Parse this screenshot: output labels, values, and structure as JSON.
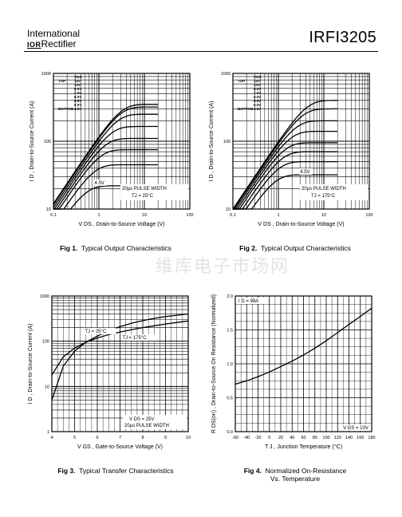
{
  "header": {
    "brand_line1": "International",
    "brand_ior": "IOR",
    "brand_line2": "Rectifier",
    "part_number": "IRFI3205"
  },
  "watermark": "维库电子市场网",
  "captions": {
    "fig1": {
      "num": "Fig 1.",
      "text": "Typical Output Characteristics"
    },
    "fig2": {
      "num": "Fig 2.",
      "text": "Typical Output Characteristics"
    },
    "fig3": {
      "num": "Fig 3.",
      "text": "Typical Transfer Characteristics"
    },
    "fig4": {
      "num": "Fig 4.",
      "text": "Normalized On-Resistance",
      "text2": "Vs. Temperature"
    }
  },
  "chart_data": [
    {
      "id": "fig1",
      "type": "line",
      "xscale": "log",
      "yscale": "log",
      "xlim": [
        0.1,
        100
      ],
      "ylim": [
        10,
        1000
      ],
      "xticks": [
        "0.1",
        "1",
        "10",
        "100"
      ],
      "yticks": [
        "10",
        "100",
        "1000"
      ],
      "xlabel": "V DS , Drain-to-Source Voltage (V)",
      "ylabel": "I D , Drain-to-Source Current (A)",
      "vgs_legend": {
        "header": "VGS",
        "labels": [
          "TOP",
          "BOTTOM"
        ],
        "values": [
          "15V",
          "10V",
          "8.0V",
          "7.0V",
          "6.0V",
          "5.5V",
          "5.0V",
          "4.5V"
        ]
      },
      "annotations": [
        "20µs PULSE WIDTH",
        "TJ = 25°C",
        "4.5V"
      ],
      "series": [
        {
          "vgs": "15V",
          "sat": 350,
          "k": 120
        },
        {
          "vgs": "10V",
          "sat": 320,
          "k": 115
        },
        {
          "vgs": "8.0V",
          "sat": 250,
          "k": 105
        },
        {
          "vgs": "7.0V",
          "sat": 165,
          "k": 95
        },
        {
          "vgs": "6.0V",
          "sat": 110,
          "k": 85
        },
        {
          "vgs": "5.5V",
          "sat": 75,
          "k": 75
        },
        {
          "vgs": "5.0V",
          "sat": 45,
          "k": 60
        },
        {
          "vgs": "4.5V",
          "sat": 22,
          "k": 45
        }
      ]
    },
    {
      "id": "fig2",
      "type": "line",
      "xscale": "log",
      "yscale": "log",
      "xlim": [
        0.1,
        100
      ],
      "ylim": [
        10,
        1000
      ],
      "xticks": [
        "0.1",
        "1",
        "10",
        "100"
      ],
      "yticks": [
        "10",
        "100",
        "1000"
      ],
      "xlabel": "V DS , Drain-to-Source Voltage (V)",
      "ylabel": "I D , Drain-to-Source Current (A)",
      "vgs_legend": {
        "header": "VGS",
        "labels": [
          "TOP",
          "BOTTOM"
        ],
        "values": [
          "15V",
          "10V",
          "8.0V",
          "7.0V",
          "6.0V",
          "5.5V",
          "5.0V",
          "4.5V"
        ]
      },
      "annotations": [
        "20µs PULSE WIDTH",
        "TJ = 175°C",
        "4.5V"
      ],
      "series": [
        {
          "vgs": "15V",
          "sat": 400,
          "k": 100
        },
        {
          "vgs": "10V",
          "sat": 300,
          "k": 95
        },
        {
          "vgs": "8.0V",
          "sat": 200,
          "k": 88
        },
        {
          "vgs": "7.0V",
          "sat": 140,
          "k": 80
        },
        {
          "vgs": "6.0V",
          "sat": 95,
          "k": 72
        },
        {
          "vgs": "5.5V",
          "sat": 70,
          "k": 62
        },
        {
          "vgs": "5.0V",
          "sat": 50,
          "k": 52
        },
        {
          "vgs": "4.5V",
          "sat": 32,
          "k": 40
        }
      ]
    },
    {
      "id": "fig3",
      "type": "line",
      "xscale": "linear",
      "yscale": "log",
      "xlim": [
        4,
        10
      ],
      "ylim": [
        1,
        1000
      ],
      "xticks": [
        "4",
        "5",
        "6",
        "7",
        "8",
        "9",
        "10"
      ],
      "yticks": [
        "1",
        "10",
        "100",
        "1000"
      ],
      "xlabel": "V GS , Gate-to-Source Voltage (V)",
      "ylabel": "I D , Drain-to-Source Current (A)",
      "annotations": [
        "V DS = 25V",
        "20µs PULSE WIDTH"
      ],
      "series": [
        {
          "name": "TJ = 25°C",
          "x": [
            4.0,
            4.5,
            5.0,
            5.5,
            6.0,
            6.5,
            7.0,
            7.5,
            8.0,
            8.5,
            9.0,
            9.5,
            10.0
          ],
          "y": [
            5,
            28,
            60,
            95,
            130,
            170,
            210,
            250,
            285,
            320,
            350,
            375,
            400
          ]
        },
        {
          "name": "TJ = 175°C",
          "x": [
            4.0,
            4.5,
            5.0,
            5.5,
            6.0,
            6.5,
            7.0,
            7.5,
            8.0,
            8.5,
            9.0,
            9.5,
            10.0
          ],
          "y": [
            18,
            45,
            70,
            95,
            118,
            140,
            160,
            180,
            200,
            220,
            240,
            260,
            280
          ]
        }
      ]
    },
    {
      "id": "fig4",
      "type": "line",
      "xscale": "linear",
      "yscale": "linear",
      "xlim": [
        -60,
        180
      ],
      "ylim": [
        0.0,
        2.0
      ],
      "xticks": [
        "-60",
        "-40",
        "-20",
        "0",
        "20",
        "40",
        "60",
        "80",
        "100",
        "120",
        "140",
        "160",
        "180"
      ],
      "yticks": [
        "0.0",
        "0.5",
        "1.0",
        "1.5",
        "2.0"
      ],
      "xlabel": "T J , Junction Temperature (°C)",
      "ylabel": "R DS(on) , Drain-to-Source On Resistance (Normalized)",
      "annotations": [
        "I D = 98A",
        "V GS = 10V"
      ],
      "series": [
        {
          "name": "RDS(on)",
          "x": [
            -60,
            -40,
            -20,
            0,
            20,
            40,
            60,
            80,
            100,
            120,
            140,
            160,
            180
          ],
          "y": [
            0.7,
            0.75,
            0.81,
            0.88,
            0.96,
            1.04,
            1.13,
            1.23,
            1.34,
            1.46,
            1.58,
            1.7,
            1.82
          ]
        }
      ]
    }
  ]
}
